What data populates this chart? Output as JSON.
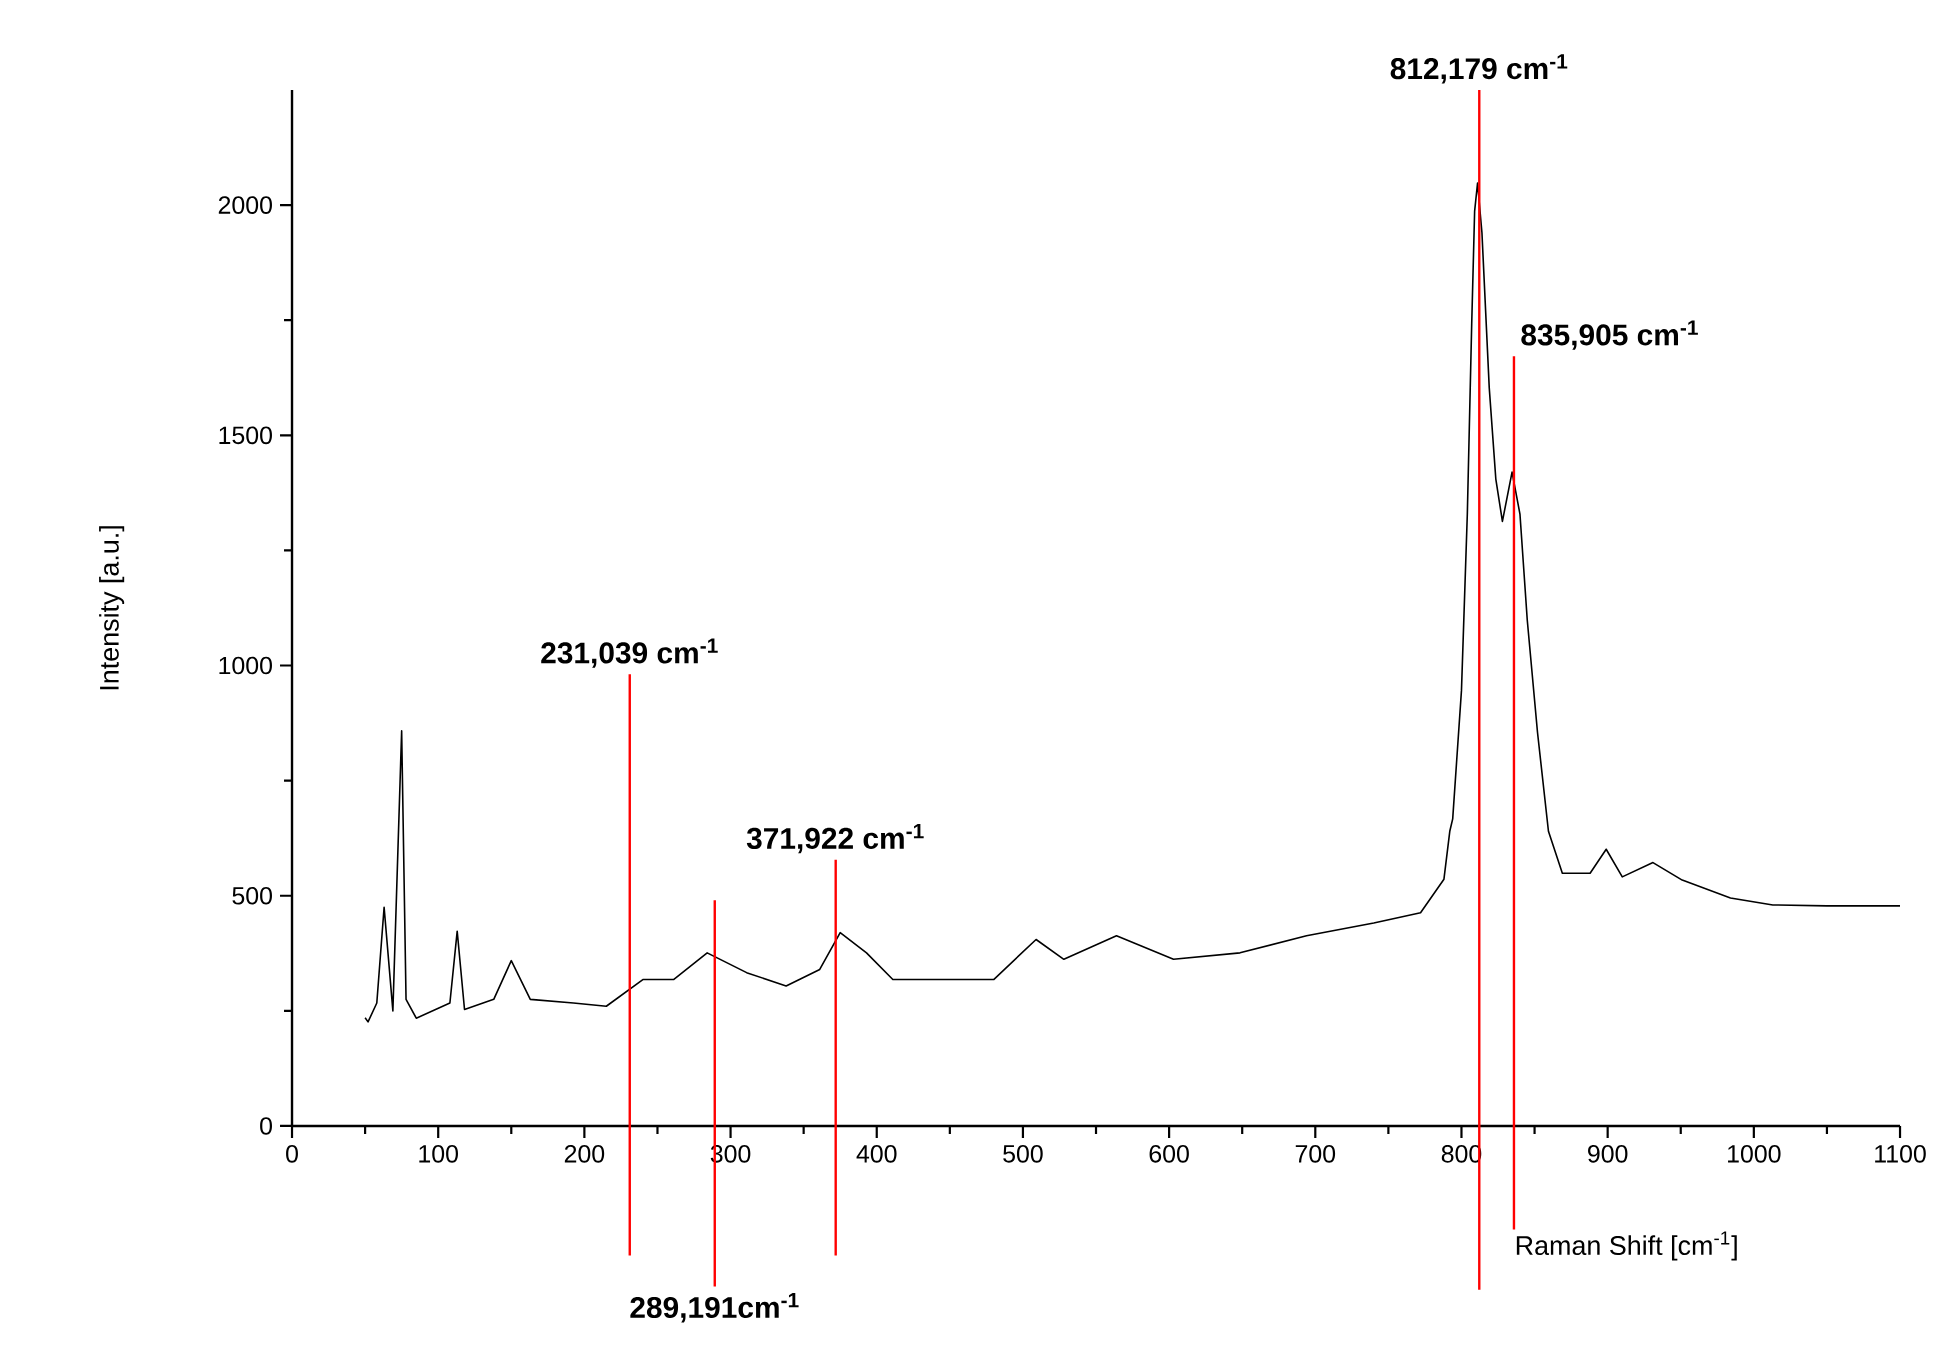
{
  "chart_data": {
    "type": "line",
    "xlabel": "Raman Shift [cm$^{-1}$]",
    "ylabel": "Intensity [a.u.]",
    "xlim": [
      0,
      1100
    ],
    "ylim": [
      0,
      2250
    ],
    "xticks": [
      0,
      100,
      200,
      300,
      400,
      500,
      600,
      700,
      800,
      900,
      1000,
      1100
    ],
    "yticks": [
      0,
      500,
      1000,
      1500,
      2000
    ],
    "marker": "none",
    "line_style": "solid",
    "series": [
      {
        "color": "#000000",
        "x": [
          50,
          52,
          58,
          63,
          69,
          75,
          78,
          85,
          108,
          113,
          118,
          138,
          150,
          163,
          192.5,
          215,
          240,
          261,
          284,
          311,
          338,
          361,
          375,
          393,
          411,
          443,
          480,
          509,
          528,
          564,
          603,
          648.5,
          694,
          740,
          772,
          788,
          792,
          794,
          800,
          804,
          807,
          809,
          811,
          814,
          819,
          823.5,
          828,
          834.6,
          840,
          845,
          852,
          859.5,
          869,
          888,
          899,
          910,
          931,
          951,
          984,
          1013,
          1050,
          1100
        ],
        "values": [
          235,
          226,
          267,
          475,
          250,
          858,
          275,
          234,
          267,
          423,
          253,
          275,
          359,
          275,
          267,
          260,
          318,
          318,
          376,
          333,
          304,
          340,
          420,
          376,
          318,
          318,
          318,
          405,
          362,
          413,
          362,
          376,
          413,
          441,
          463,
          536,
          640,
          667,
          946,
          1329,
          1742,
          1987,
          2048,
          1940,
          1603,
          1405,
          1313,
          1420,
          1329,
          1099,
          855,
          640,
          549,
          549,
          601,
          541,
          572,
          534,
          495,
          480,
          478,
          478
        ]
      }
    ],
    "ref_lines": [
      {
        "axis": "x",
        "value": 231.039,
        "label": "231,039 cm$^{-1}$",
        "color": "#ff0000"
      },
      {
        "axis": "x",
        "value": 289.191,
        "label": "289,191cm$^{-1}$",
        "color": "#ff0000"
      },
      {
        "axis": "x",
        "value": 371.922,
        "label": "371,922 cm$^{-1}$",
        "color": "#ff0000"
      },
      {
        "axis": "x",
        "value": 812.179,
        "label": "812,179 cm$^{-1}$",
        "color": "#ff0000"
      },
      {
        "axis": "x",
        "value": 835.905,
        "label": "835,905 cm$^{-1}$",
        "color": "#ff0000"
      }
    ]
  }
}
